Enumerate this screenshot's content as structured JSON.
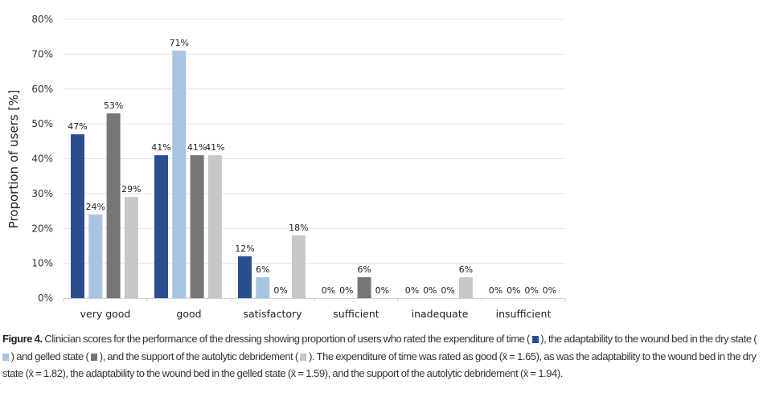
{
  "chart_data": {
    "type": "bar",
    "title": "",
    "xlabel": "",
    "ylabel": "Proportion of users [%]",
    "ylim": [
      0,
      80
    ],
    "yticks": [
      "0%",
      "10%",
      "20%",
      "30%",
      "40%",
      "50%",
      "60%",
      "70%",
      "80%"
    ],
    "grid": true,
    "legend": "none",
    "categories": [
      "very good",
      "good",
      "satisfactory",
      "sufficient",
      "inadequate",
      "insufficient"
    ],
    "series": [
      {
        "color": "#2b4f8d",
        "values": [
          47,
          41,
          12,
          0,
          0,
          0
        ]
      },
      {
        "color": "#a9c3e3",
        "values": [
          24,
          71,
          6,
          0,
          0,
          0
        ]
      },
      {
        "color": "#767676",
        "values": [
          53,
          41,
          0,
          6,
          0,
          0
        ]
      },
      {
        "color": "#c7c7c7",
        "values": [
          29,
          41,
          18,
          0,
          6,
          0
        ]
      }
    ],
    "label_suffix": "%"
  },
  "caption": {
    "figure_label": "Figure 4.",
    "part1": " Clinician scores for the performance of the dressing showing proportion of users who rated the expenditure of time (",
    "part2": "), the adaptability to the wound bed in the dry state (",
    "part3": ") and gelled state (",
    "part4": "), and the support of the autolytic debridement (",
    "part5": "). The expenditure of time was rated as good (x̄ = 1.65), as was the adaptability to the wound bed in the dry state (x̄ = 1.82),  the adaptability to the wound bed in the gelled state (x̄ = 1.59), and the support of the autolytic debridement (x̄ = 1.94)."
  }
}
